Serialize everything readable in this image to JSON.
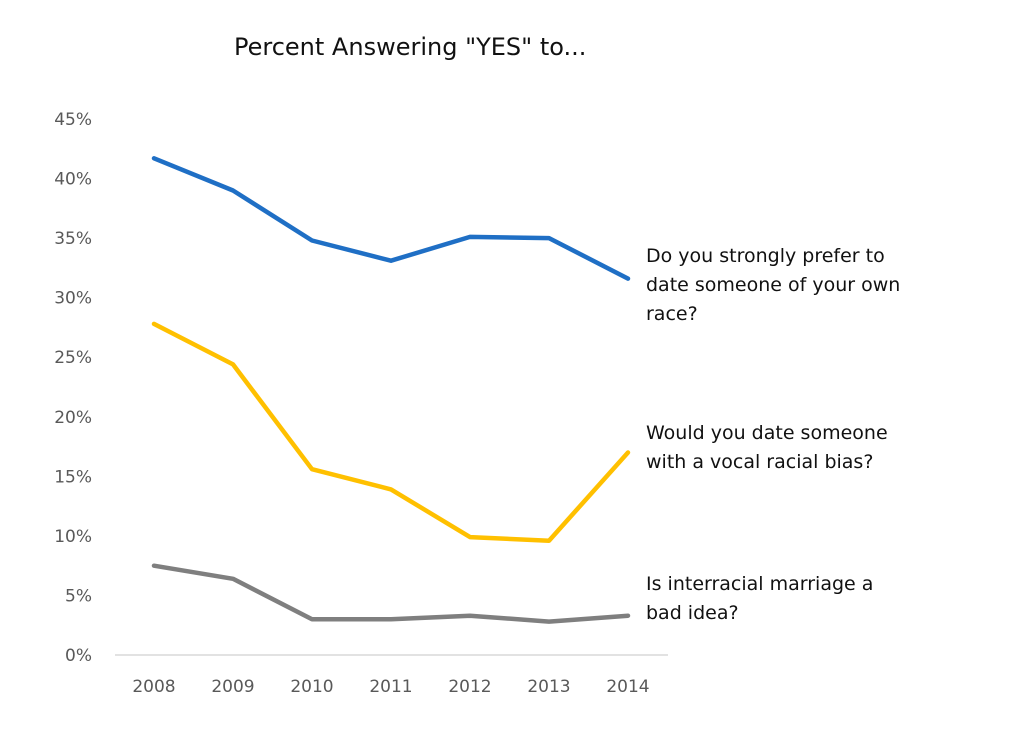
{
  "chart_data": {
    "type": "line",
    "title": "Percent Answering \"YES\" to...",
    "xlabel": "",
    "ylabel": "",
    "categories": [
      "2008",
      "2009",
      "2010",
      "2011",
      "2012",
      "2013",
      "2014"
    ],
    "ylim": [
      0,
      45
    ],
    "yticks": [
      0,
      5,
      10,
      15,
      20,
      25,
      30,
      35,
      40,
      45
    ],
    "ytick_labels": [
      "0%",
      "5%",
      "10%",
      "15%",
      "20%",
      "25%",
      "30%",
      "35%",
      "40%",
      "45%"
    ],
    "grid": false,
    "legend": "direct labels at line ends (right)",
    "series": [
      {
        "label_lines": [
          "Do you strongly prefer to",
          "date someone of your own",
          "race?"
        ],
        "color": "#1F6FC5",
        "values": [
          41.7,
          39.0,
          34.8,
          33.1,
          35.1,
          35.0,
          31.6
        ]
      },
      {
        "label_lines": [
          "Would you date someone",
          "with a vocal racial bias?"
        ],
        "color": "#FFC000",
        "values": [
          27.8,
          24.4,
          15.6,
          13.9,
          9.9,
          9.6,
          17.0
        ]
      },
      {
        "label_lines": [
          "Is interracial marriage a",
          "bad idea?"
        ],
        "color": "#7F7F7F",
        "values": [
          7.5,
          6.4,
          3.0,
          3.0,
          3.3,
          2.8,
          3.3
        ]
      }
    ]
  }
}
